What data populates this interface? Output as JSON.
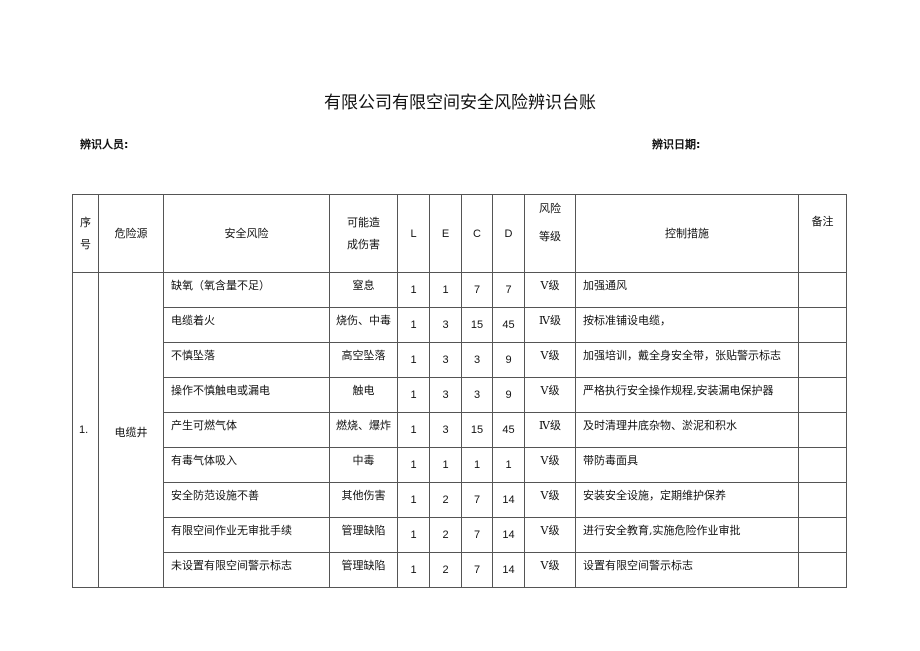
{
  "title": "有限公司有限空间安全风险辨识台账",
  "identifier_label": "辨识人员:",
  "date_label": "辨识日期:",
  "headers": [
    "序号",
    "危险源",
    "安全风险",
    "可能造成伤害",
    "L",
    "E",
    "C",
    "D",
    "风险等级",
    "控制措施",
    "备注"
  ],
  "group": {
    "no": "1.",
    "hazard": "电缆井"
  },
  "rows": [
    {
      "risk": "缺氧（氧含量不足）",
      "harm": "窒息",
      "L": "1",
      "E": "1",
      "C": "7",
      "D": "7",
      "level": "Ⅴ级",
      "control": "加强通风",
      "note": ""
    },
    {
      "risk": "电缆着火",
      "harm": "烧伤、中毒",
      "L": "1",
      "E": "3",
      "C": "15",
      "D": "45",
      "level": "Ⅳ级",
      "control": "按标准铺设电缆，",
      "note": ""
    },
    {
      "risk": "不慎坠落",
      "harm": "高空坠落",
      "L": "1",
      "E": "3",
      "C": "3",
      "D": "9",
      "level": "Ⅴ级",
      "control": "加强培训，戴全身安全带，张贴警示标志",
      "note": ""
    },
    {
      "risk": "操作不慎触电或漏电",
      "harm": "触电",
      "L": "1",
      "E": "3",
      "C": "3",
      "D": "9",
      "level": "Ⅴ级",
      "control": "严格执行安全操作规程,安装漏电保护器",
      "note": ""
    },
    {
      "risk": "产生可燃气体",
      "harm": "燃烧、爆炸",
      "L": "1",
      "E": "3",
      "C": "15",
      "D": "45",
      "level": "Ⅳ级",
      "control": "及时清理井底杂物、淤泥和积水",
      "note": ""
    },
    {
      "risk": "有毒气体吸入",
      "harm": "中毒",
      "L": "1",
      "E": "1",
      "C": "1",
      "D": "1",
      "level": "Ⅴ级",
      "control": "带防毒面具",
      "note": ""
    },
    {
      "risk": "安全防范设施不善",
      "harm": "其他伤害",
      "L": "1",
      "E": "2",
      "C": "7",
      "D": "14",
      "level": "Ⅴ级",
      "control": "安装安全设施，定期维护保养",
      "note": ""
    },
    {
      "risk": "有限空间作业无审批手续",
      "harm": "管理缺陷",
      "L": "1",
      "E": "2",
      "C": "7",
      "D": "14",
      "level": "Ⅴ级",
      "control": "进行安全教育,实施危险作业审批",
      "note": ""
    },
    {
      "risk": "未设置有限空间警示标志",
      "harm": "管理缺陷",
      "L": "1",
      "E": "2",
      "C": "7",
      "D": "14",
      "level": "Ⅴ级",
      "control": "设置有限空间警示标志",
      "note": ""
    }
  ]
}
